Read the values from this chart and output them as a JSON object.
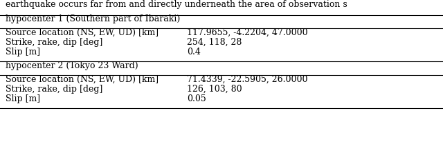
{
  "caption": "earthquake occurs far from and directly underneath the area of observation s",
  "header1": "hypocenter 1 (Southern part of Ibaraki)",
  "header2": "hypocenter 2 (Tokyo 23 Ward)",
  "rows1": [
    [
      "Source location (NS, EW, UD) [km]",
      "117.9655, -4.2204, 47.0000"
    ],
    [
      "Strike, rake, dip [deg]",
      "254, 118, 28"
    ],
    [
      "Slip [m]",
      "0.4"
    ]
  ],
  "rows2": [
    [
      "Source location (NS, EW, UD) [km]",
      "71.4339, -22.5905, 26.0000"
    ],
    [
      "Strike, rake, dip [deg]",
      "126, 103, 80"
    ],
    [
      "Slip [m]",
      "0.05"
    ]
  ],
  "font_size": 9.0,
  "bg_color": "#ffffff",
  "text_color": "#000000",
  "line_color": "#000000"
}
